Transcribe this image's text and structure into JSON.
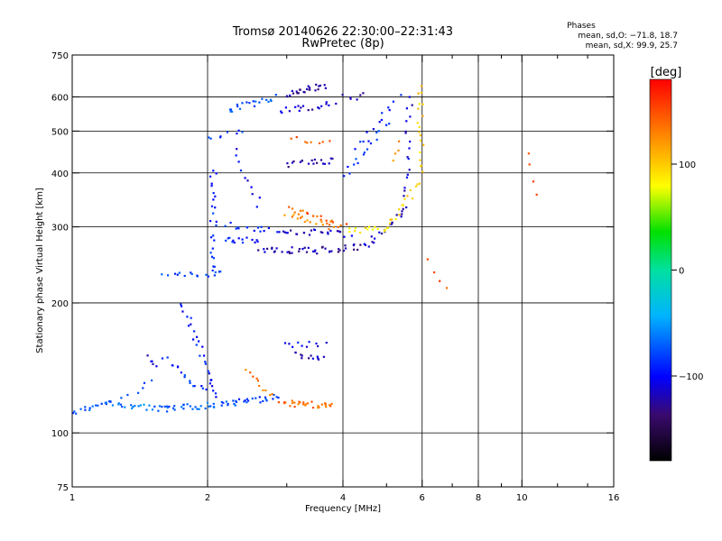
{
  "chart_data": {
    "type": "scatter",
    "title": "Tromsø 20140626 22:30:00–22:31:43",
    "subtitle": "RwPretec (8p)",
    "phases": {
      "heading": "Phases",
      "line1": "mean, sd,O: −71.8, 18.7",
      "line2": "mean, sd,X:  99.9, 25.7"
    },
    "xlabel": "Frequency [MHz]",
    "ylabel": "Stationary phase Virtual Height [km]",
    "xscale": "log",
    "yscale": "log",
    "xlim": [
      1,
      16
    ],
    "ylim": [
      75,
      750
    ],
    "xticks": [
      {
        "value": 1,
        "label": "1"
      },
      {
        "value": 2,
        "label": "2"
      },
      {
        "value": 4,
        "label": "4"
      },
      {
        "value": 6,
        "label": "6"
      },
      {
        "value": 8,
        "label": "8"
      },
      {
        "value": 10,
        "label": "10"
      },
      {
        "value": 16,
        "label": "16"
      }
    ],
    "xgrid": [
      2,
      4,
      6,
      8,
      10
    ],
    "xminor": [
      3,
      5,
      7,
      9,
      12,
      14
    ],
    "yticks": [
      {
        "value": 75,
        "label": "75"
      },
      {
        "value": 100,
        "label": "100"
      },
      {
        "value": 200,
        "label": "200"
      },
      {
        "value": 300,
        "label": "300"
      },
      {
        "value": 400,
        "label": "400"
      },
      {
        "value": 500,
        "label": "500"
      },
      {
        "value": 600,
        "label": "600"
      },
      {
        "value": 750,
        "label": "750"
      }
    ],
    "ygrid": [
      100,
      200,
      300,
      400,
      500,
      600
    ],
    "colorbar": {
      "label": "[deg]",
      "min": -180,
      "max": 180,
      "ticks": [
        {
          "value": 100,
          "label": "100"
        },
        {
          "value": 0,
          "label": "0"
        },
        {
          "value": -100,
          "label": "−100"
        }
      ]
    },
    "series": [
      {
        "from": [
          1.0,
          112
        ],
        "to": [
          1.2,
          118
        ],
        "phase": -75,
        "n": 14
      },
      {
        "from": [
          1.15,
          118
        ],
        "to": [
          1.6,
          114
        ],
        "phase": -65,
        "n": 26
      },
      {
        "from": [
          1.6,
          114
        ],
        "to": [
          2.3,
          118
        ],
        "phase": -70,
        "n": 34
      },
      {
        "from": [
          2.3,
          118
        ],
        "to": [
          2.85,
          122
        ],
        "phase": -80,
        "n": 20
      },
      {
        "from": [
          2.9,
          118
        ],
        "to": [
          3.8,
          116
        ],
        "phase": 140,
        "n": 30
      },
      {
        "from": [
          2.45,
          140
        ],
        "to": [
          2.75,
          122
        ],
        "phase": 135,
        "n": 10
      },
      {
        "from": [
          3.1,
          152
        ],
        "to": [
          3.6,
          150
        ],
        "phase": -120,
        "n": 12
      },
      {
        "from": [
          3.0,
          162
        ],
        "to": [
          3.6,
          160
        ],
        "phase": -100,
        "n": 10
      },
      {
        "from": [
          1.75,
          200
        ],
        "to": [
          2.1,
          120
        ],
        "phase": -95,
        "n": 26
      },
      {
        "from": [
          1.6,
          150
        ],
        "to": [
          1.95,
          125
        ],
        "phase": -85,
        "n": 16
      },
      {
        "from": [
          1.45,
          150
        ],
        "to": [
          1.55,
          145
        ],
        "phase": -110,
        "n": 5
      },
      {
        "from": [
          1.3,
          120
        ],
        "to": [
          1.5,
          132
        ],
        "phase": -75,
        "n": 6
      },
      {
        "from": [
          1.6,
          232
        ],
        "to": [
          2.15,
          236
        ],
        "phase": -80,
        "n": 16
      },
      {
        "from": [
          2.05,
          235
        ],
        "to": [
          2.05,
          410
        ],
        "phase": -90,
        "n": 24
      },
      {
        "from": [
          2.15,
          280
        ],
        "to": [
          2.6,
          282
        ],
        "phase": -95,
        "n": 14
      },
      {
        "from": [
          2.6,
          268
        ],
        "to": [
          3.4,
          265
        ],
        "phase": -120,
        "n": 22
      },
      {
        "from": [
          3.4,
          265
        ],
        "to": [
          4.5,
          272
        ],
        "phase": -125,
        "n": 22
      },
      {
        "from": [
          4.5,
          275
        ],
        "to": [
          5.5,
          330
        ],
        "phase": -115,
        "n": 18
      },
      {
        "from": [
          5.5,
          340
        ],
        "to": [
          5.6,
          600
        ],
        "phase": -110,
        "n": 18
      },
      {
        "from": [
          2.2,
          305
        ],
        "to": [
          2.8,
          295
        ],
        "phase": -90,
        "n": 14
      },
      {
        "from": [
          2.85,
          295
        ],
        "to": [
          4.1,
          290
        ],
        "phase": -115,
        "n": 24
      },
      {
        "from": [
          3.0,
          330
        ],
        "to": [
          4.0,
          305
        ],
        "phase": 145,
        "n": 22
      },
      {
        "from": [
          3.0,
          320
        ],
        "to": [
          3.8,
          300
        ],
        "phase": 125,
        "n": 14
      },
      {
        "from": [
          4.1,
          295
        ],
        "to": [
          5.0,
          300
        ],
        "phase": 85,
        "n": 14
      },
      {
        "from": [
          5.0,
          300
        ],
        "to": [
          5.9,
          380
        ],
        "phase": 95,
        "n": 16
      },
      {
        "from": [
          5.9,
          400
        ],
        "to": [
          5.95,
          640
        ],
        "phase": 100,
        "n": 18
      },
      {
        "from": [
          4.0,
          400
        ],
        "to": [
          5.0,
          520
        ],
        "phase": -85,
        "n": 16
      },
      {
        "from": [
          3.0,
          610
        ],
        "to": [
          3.6,
          640
        ],
        "phase": -125,
        "n": 24
      },
      {
        "from": [
          2.9,
          560
        ],
        "to": [
          3.8,
          580
        ],
        "phase": -115,
        "n": 18
      },
      {
        "from": [
          3.0,
          420
        ],
        "to": [
          3.8,
          430
        ],
        "phase": -125,
        "n": 18
      },
      {
        "from": [
          3.1,
          480
        ],
        "to": [
          3.7,
          470
        ],
        "phase": 145,
        "n": 8
      },
      {
        "from": [
          2.2,
          560
        ],
        "to": [
          2.8,
          600
        ],
        "phase": -75,
        "n": 20
      },
      {
        "from": [
          2.0,
          480
        ],
        "to": [
          2.4,
          500
        ],
        "phase": -85,
        "n": 8
      },
      {
        "from": [
          2.3,
          450
        ],
        "to": [
          2.6,
          340
        ],
        "phase": -100,
        "n": 10
      },
      {
        "from": [
          4.3,
          460
        ],
        "to": [
          5.3,
          600
        ],
        "phase": -95,
        "n": 12
      },
      {
        "from": [
          4.0,
          600
        ],
        "to": [
          4.4,
          605
        ],
        "phase": -120,
        "n": 6
      },
      {
        "from": [
          5.1,
          430
        ],
        "to": [
          5.3,
          470
        ],
        "phase": 125,
        "n": 4
      },
      {
        "from": [
          6.2,
          250
        ],
        "to": [
          6.8,
          220
        ],
        "phase": 150,
        "n": 4
      },
      {
        "from": [
          10.4,
          450
        ],
        "to": [
          10.6,
          360
        ],
        "phase": 145,
        "n": 4
      }
    ]
  }
}
